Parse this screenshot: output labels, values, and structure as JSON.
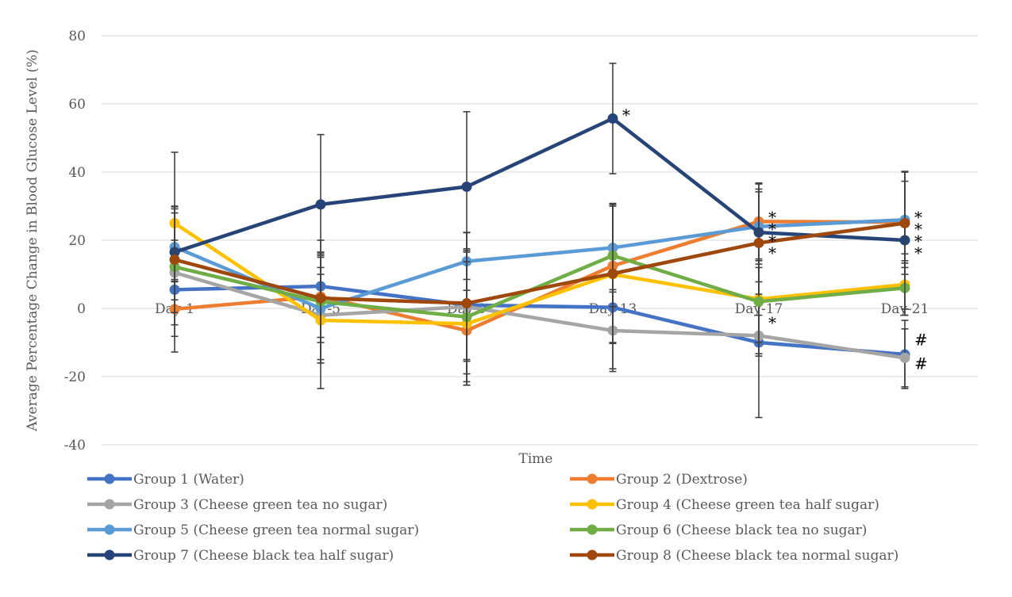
{
  "chart_data": {
    "type": "line",
    "title": "",
    "xlabel": "Time",
    "ylabel": "Average Percentage Change in Blood Glucose Level (%)",
    "ylim": [
      -40,
      80
    ],
    "yticks": [
      -40,
      -20,
      0,
      20,
      40,
      60,
      80
    ],
    "grid": true,
    "legend_position": "bottom",
    "categories": [
      "Day-1",
      "Day-5",
      "Day-9",
      "Day-13",
      "Day-17",
      "Day-21"
    ],
    "series": [
      {
        "name": "Group 1 (Water)",
        "color": "#4472c4",
        "values": [
          5.5,
          6.5,
          1,
          0.3,
          -10,
          -13.5
        ],
        "error": [
          3,
          10,
          16,
          18,
          22,
          10
        ]
      },
      {
        "name": "Group 2 (Dextrose)",
        "color": "#ed7d31",
        "values": [
          -0.2,
          3.5,
          -6.5,
          12.5,
          25.5,
          25.3
        ],
        "error": [
          8,
          12,
          15,
          18,
          11,
          12
        ]
      },
      {
        "name": "Group 3 (Cheese green tea no sugar)",
        "color": "#a5a5a5",
        "values": [
          10.5,
          -2,
          0.5,
          -6.5,
          -8,
          -14.5
        ],
        "error": [
          8,
          14,
          16,
          12,
          6,
          8.5
        ]
      },
      {
        "name": "Group 4 (Cheese green tea half sugar)",
        "color": "#ffc000",
        "values": [
          25,
          -3.5,
          -4.5,
          10,
          2.7,
          7
        ],
        "error": [
          5,
          20,
          18,
          20,
          16,
          9
        ]
      },
      {
        "name": "Group 5 (Cheese green tea normal sugar)",
        "color": "#5b9bd5",
        "values": [
          18,
          0,
          13.8,
          17.8,
          24,
          26
        ],
        "error": [
          10,
          15,
          8.5,
          13,
          11,
          14
        ]
      },
      {
        "name": "Group 6 (Cheese black tea no sugar)",
        "color": "#70ad47",
        "values": [
          12.2,
          2,
          -2.5,
          15.5,
          2,
          6
        ],
        "error": [
          17,
          18,
          20,
          15,
          12,
          8
        ]
      },
      {
        "name": "Group 7 (Cheese black tea half sugar)",
        "color": "#264478",
        "values": [
          16.5,
          30.5,
          35.7,
          55.7,
          22.3,
          20
        ],
        "error": [
          29.3,
          20.5,
          22,
          16.2,
          14.5,
          20.2
        ]
      },
      {
        "name": "Group 8 (Cheese black tea normal sugar)",
        "color": "#9e480e",
        "values": [
          14.3,
          3,
          1.5,
          10.2,
          19.2,
          25
        ],
        "error": [
          15.5,
          13,
          20.7,
          20.5,
          15,
          15
        ]
      }
    ],
    "annotations": [
      {
        "text": "*",
        "x": "Day-13",
        "y": 57.5
      },
      {
        "text": "*",
        "x": "Day-17",
        "y": 27.5
      },
      {
        "text": "*",
        "x": "Day-17",
        "y": 24
      },
      {
        "text": "*",
        "x": "Day-17",
        "y": 20.5
      },
      {
        "text": "*",
        "x": "Day-17",
        "y": 17
      },
      {
        "text": "*",
        "x": "Day-17",
        "y": -3.5
      },
      {
        "text": "*",
        "x": "Day-21",
        "y": 27.5
      },
      {
        "text": "*",
        "x": "Day-21",
        "y": 24
      },
      {
        "text": "*",
        "x": "Day-21",
        "y": 20.5
      },
      {
        "text": "*",
        "x": "Day-21",
        "y": 17
      },
      {
        "text": "#",
        "x": "Day-21",
        "y": -8.5
      },
      {
        "text": "#",
        "x": "Day-21",
        "y": -15.5
      }
    ]
  }
}
